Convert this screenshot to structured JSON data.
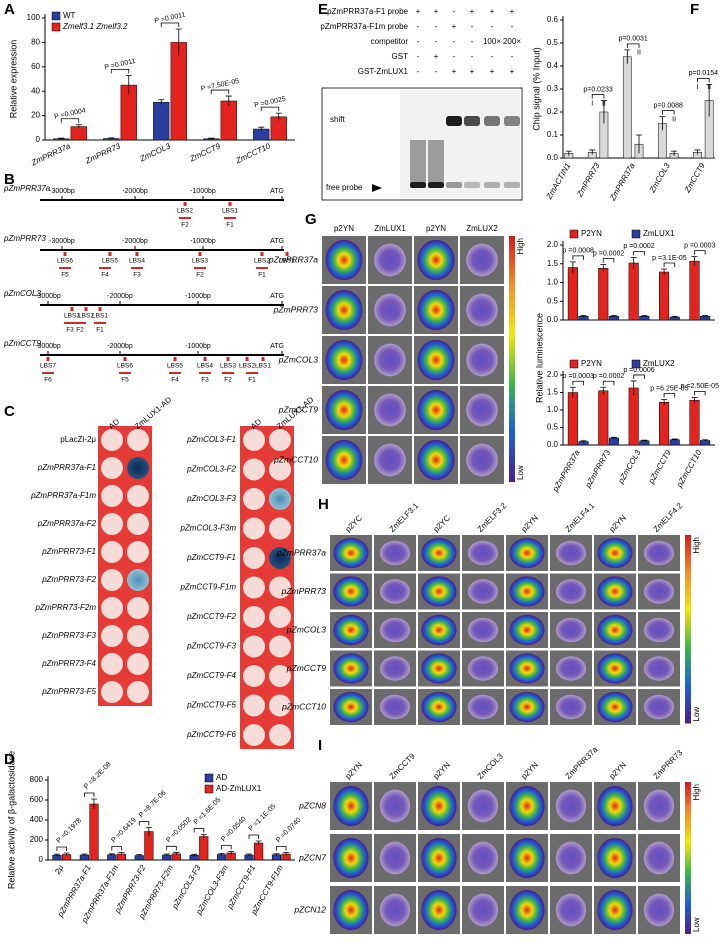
{
  "chart_data": [
    {
      "type": "bar",
      "panel": "A",
      "y_label": "Relative expression",
      "legend": "upper left",
      "categories": [
        "ZmPRR37a",
        "ZmPRR73",
        "ZmCOL3",
        "ZmCCT9",
        "ZmCCT10"
      ],
      "series": [
        {
          "name": "WT",
          "color": "#2a3f9d",
          "values": [
            1,
            1.2,
            31,
            1,
            9
          ],
          "errors": [
            0.5,
            0.5,
            2,
            0.5,
            1.5
          ]
        },
        {
          "name": "Zmelf3.1 Zmelf3.2",
          "color": "#e5231e",
          "values": [
            11,
            45,
            80,
            32,
            19
          ],
          "errors": [
            1.5,
            8,
            11,
            4,
            3
          ]
        }
      ],
      "p_values": [
        "P =0.0004",
        "P =0.0011",
        "P =0.0011",
        "P =7.50E-05",
        "P =0.0025"
      ],
      "ylim": [
        0,
        100
      ],
      "yticks": [
        0,
        20,
        40,
        60,
        80,
        100
      ]
    },
    {
      "type": "bar",
      "panel": "D",
      "y_label": "Relative activity of β-galactosidase",
      "legend": "upper right",
      "categories": [
        "2μ",
        "pZmPRR37a-F1",
        "pZmPRR37a-F1m",
        "pZmPRR73-F2",
        "pZmPRR73-F2m",
        "pZmCOL3-F3",
        "pZmCOL3-F3m",
        "pZmCCT9-F1",
        "pZmCCT9-F1m"
      ],
      "series": [
        {
          "name": "AD",
          "color": "#2a3f9d",
          "values": [
            48,
            50,
            52,
            45,
            50,
            47,
            55,
            50,
            52
          ],
          "errors": [
            10,
            10,
            10,
            10,
            10,
            10,
            10,
            10,
            10
          ]
        },
        {
          "name": "AD-ZmLUX1",
          "color": "#e5231e",
          "values": [
            55,
            560,
            60,
            285,
            62,
            235,
            70,
            170,
            60
          ],
          "errors": [
            15,
            50,
            15,
            40,
            15,
            20,
            15,
            20,
            15
          ]
        }
      ],
      "p_values": [
        "P =0.1978",
        "P =8.2E-08",
        "P =0.6419",
        "P =8.7E-06",
        "P =0.0502",
        "P =1.6E-05",
        "P =0.0540",
        "P =1.1E-05",
        "P =0.0740"
      ],
      "ylim": [
        0,
        800
      ],
      "yticks": [
        0,
        200,
        400,
        600,
        800
      ]
    },
    {
      "type": "bar",
      "panel": "F",
      "y_label": "Chip signal (% Input)",
      "color": "#d9d9d9",
      "groups": [
        {
          "name": "ZmACTIN1",
          "values": [
            0.02
          ],
          "errors": [
            0.01
          ]
        },
        {
          "name": "ZmPRR73",
          "sublabels": [
            "I",
            "II"
          ],
          "values": [
            0.025,
            0.2
          ],
          "errors": [
            0.01,
            0.05
          ],
          "p_value": "p=0.0233"
        },
        {
          "name": "ZmPRR37a",
          "sublabels": [
            "I",
            "II"
          ],
          "values": [
            0.44,
            0.06
          ],
          "errors": [
            0.03,
            0.04
          ],
          "p_value": "p=0.0031"
        },
        {
          "name": "ZmCOL3",
          "sublabels": [
            "I",
            "II"
          ],
          "values": [
            0.15,
            0.02
          ],
          "errors": [
            0.03,
            0.01
          ],
          "p_value": "p=0.0088"
        },
        {
          "name": "ZmCCT9",
          "sublabels": [
            "I",
            "II"
          ],
          "values": [
            0.025,
            0.25
          ],
          "errors": [
            0.01,
            0.07
          ],
          "p_value": "p=0.0154"
        }
      ],
      "ylim": [
        0,
        0.6
      ],
      "yticks": [
        {
          "value": 0,
          "label": "0.0"
        },
        0.1,
        0.2,
        0.3,
        0.4,
        0.5,
        0.6
      ]
    },
    {
      "type": "bar",
      "y_label": "Relative luminescence",
      "legend": "top",
      "series": [
        {
          "name": "P2YN",
          "color": "#e5231e",
          "values": [
            1.4,
            1.38,
            1.52,
            1.28,
            1.57
          ],
          "errors": [
            0.15,
            0.1,
            0.15,
            0.08,
            0.12
          ]
        },
        {
          "name": "ZmLUX1",
          "color": "#2a3f9d",
          "values": [
            0.1,
            0.1,
            0.1,
            0.08,
            0.1
          ],
          "errors": [
            0.02,
            0.02,
            0.02,
            0.02,
            0.02
          ]
        }
      ],
      "p_values": [
        "p =0.0008",
        "p =0.0002",
        "p =0.0002",
        "p =3.1E-05",
        "p =0.0003"
      ],
      "ylim": [
        0,
        2
      ],
      "yticks": [
        {
          "value": 0,
          "label": "0.0"
        },
        0.5,
        {
          "value": 1,
          "label": "1.0"
        },
        1.5,
        {
          "value": 2,
          "label": "2.0"
        }
      ]
    },
    {
      "type": "bar",
      "legend": "top",
      "categories": [
        "pZmPRR37a",
        "pZmPRR73",
        "pZmCOL3",
        "pZmCCT9",
        "pZmCCT10"
      ],
      "series": [
        {
          "name": "P2YN",
          "color": "#e5231e",
          "values": [
            1.5,
            1.55,
            1.63,
            1.22,
            1.28
          ],
          "errors": [
            0.15,
            0.1,
            0.2,
            0.08,
            0.08
          ]
        },
        {
          "name": "ZmLUX2",
          "color": "#2a3f9d",
          "values": [
            0.1,
            0.2,
            0.12,
            0.15,
            0.13
          ],
          "errors": [
            0.02,
            0.02,
            0.02,
            0.02,
            0.02
          ]
        }
      ],
      "p_values": [
        "p =0.0003",
        "p =0.0002",
        "p =0.0006",
        "p =6.25E-05",
        "p =2.50E-05"
      ],
      "ylim": [
        0,
        2
      ],
      "yticks": [
        {
          "value": 0,
          "label": "0.0"
        },
        0.5,
        {
          "value": 1,
          "label": "1.0"
        },
        1.5,
        {
          "value": 2,
          "label": "2.0"
        }
      ]
    }
  ],
  "panel_b": {
    "panel": "B",
    "rows": [
      {
        "promoter": "pZmPRR37a",
        "scale": [
          "-3000bp",
          "-2000bp",
          "-1000bp",
          "ATG"
        ],
        "sites": [
          "LBS2",
          "LBS1"
        ],
        "fragments": [
          "F2",
          "F1"
        ]
      },
      {
        "promoter": "pZmPRR73",
        "scale": [
          "-3000bp",
          "-2000bp",
          "-1000bp",
          "ATG"
        ],
        "sites": [
          "LBS6",
          "LBS5",
          "LBS4",
          "LBS3",
          "LBS2",
          "LBS1"
        ],
        "fragments": [
          "F5",
          "F4",
          "F3",
          "F2",
          "F1"
        ]
      },
      {
        "promoter": "pZmCOL3",
        "scale": [
          "-3000bp",
          "-2000bp",
          "-1000bp",
          "ATG"
        ],
        "sites": [
          "LBS3",
          "LBS2",
          "LBS1"
        ],
        "fragments": [
          "F3",
          "F2",
          "F1"
        ]
      },
      {
        "promoter": "pZmCCT9",
        "scale": [
          "-3000bp",
          "-2000bp",
          "-1000bp",
          "ATG"
        ],
        "sites": [
          "LBS7",
          "LBS6",
          "LBS5",
          "LBS4",
          "LBS3",
          "LBS2",
          "LBS1"
        ],
        "fragments": [
          "F6",
          "F5",
          "F4",
          "F3",
          "F2",
          "F1"
        ]
      }
    ]
  },
  "panel_c": {
    "panel": "C",
    "blocks": [
      {
        "columns": [
          "AD",
          "ZmLUX1-AD"
        ],
        "rows": [
          "pLacZi-2μ",
          "pZmPRR37a-F1",
          "pZmPRR37a-F1m",
          "pZmPRR37a-F2",
          "pZmPRR73-F1",
          "pZmPRR73-F2",
          "pZmPRR73-F2m",
          "pZmPRR73-F3",
          "pZmPRR73-F4",
          "pZmPRR73-F5"
        ]
      },
      {
        "columns": [
          "AD",
          "ZmLUX1-AD"
        ],
        "rows": [
          "pZmCOL3-F1",
          "pZmCOL3-F2",
          "pZmCOL3-F3",
          "pZmCOL3-F3m",
          "pZmCCT9-F1",
          "pZmCCT9-F1m",
          "pZmCCT9-F2",
          "pZmCCT9-F3",
          "pZmCCT9-F4",
          "pZmCCT9-F5",
          "pZmCCT9-F6"
        ]
      }
    ]
  },
  "panel_e": {
    "panel": "E",
    "rows": [
      {
        "label": "pZmPRR37a-F1 probe",
        "cells": [
          "+",
          "+",
          "-",
          "+",
          "+",
          "+"
        ]
      },
      {
        "label": "pZmPRR37a-F1m probe",
        "cells": [
          "-",
          "-",
          "+",
          "-",
          "-",
          "-"
        ]
      },
      {
        "label": "competitor",
        "cells": [
          "-",
          "-",
          "-",
          "-",
          "100×",
          "200×"
        ]
      },
      {
        "label": "GST",
        "cells": [
          "-",
          "+",
          "-",
          "-",
          "-",
          "-"
        ]
      },
      {
        "label": "GST-ZmLUX1",
        "cells": [
          "-",
          "-",
          "+",
          "+",
          "+",
          "+"
        ]
      }
    ],
    "gel_labels": [
      "shift",
      "free probe"
    ]
  },
  "panel_g": {
    "panel": "G",
    "columns": [
      "p2YN",
      "ZmLUX1",
      "p2YN",
      "ZmLUX2"
    ],
    "rows": [
      "pZmPRR37a",
      "pZmPRR73",
      "pZmCOL3",
      "pZmCCT9",
      "pZmCCT10"
    ],
    "scale": [
      "High",
      "Low"
    ]
  },
  "panel_h": {
    "panel": "H",
    "columns": [
      "p2YC",
      "ZmELF3.1",
      "p2YC",
      "ZmELF3.2",
      "p2YN",
      "ZmELF4.1",
      "p2YN",
      "ZmELF4.2"
    ],
    "rows": [
      "pZmPRR37a",
      "pZmPRR73",
      "pZmCOL3",
      "pZmCCT9",
      "pZmCCT10"
    ],
    "scale": [
      "High",
      "Low"
    ]
  },
  "panel_i": {
    "panel": "I",
    "columns": [
      "p2YN",
      "ZmCCT9",
      "p2YN",
      "ZmCOL3",
      "p2YN",
      "ZmPRR37a",
      "p2YN",
      "ZmPRR73"
    ],
    "rows": [
      "pZCN8",
      "pZCN7",
      "pZCN12"
    ],
    "scale": [
      "High",
      "Low"
    ]
  }
}
